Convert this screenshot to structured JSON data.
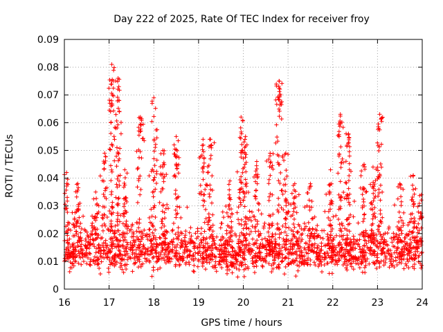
{
  "chart_data": {
    "type": "scatter",
    "title": "Day 222 of 2025, Rate Of TEC Index for receiver froy",
    "xlabel": "GPS time / hours",
    "ylabel": "ROTI / TECUs",
    "xlim": [
      16,
      24
    ],
    "ylim": [
      0,
      0.09
    ],
    "x_ticks": [
      "16",
      "17",
      "18",
      "19",
      "20",
      "21",
      "22",
      "23",
      "24"
    ],
    "y_ticks": [
      "0",
      "0.01",
      "0.02",
      "0.03",
      "0.04",
      "0.05",
      "0.06",
      "0.07",
      "0.08",
      "0.09"
    ],
    "grid": true,
    "marker": "+",
    "series_color": "#ff0000",
    "noise_baseline": 0.013,
    "bursts": [
      {
        "x": 16.05,
        "peak": 0.042
      },
      {
        "x": 16.3,
        "peak": 0.038
      },
      {
        "x": 16.7,
        "peak": 0.035
      },
      {
        "x": 16.9,
        "peak": 0.049
      },
      {
        "x": 17.06,
        "peak": 0.081
      },
      {
        "x": 17.2,
        "peak": 0.076
      },
      {
        "x": 17.35,
        "peak": 0.043
      },
      {
        "x": 17.7,
        "peak": 0.062
      },
      {
        "x": 18.0,
        "peak": 0.069
      },
      {
        "x": 18.2,
        "peak": 0.05
      },
      {
        "x": 18.5,
        "peak": 0.055
      },
      {
        "x": 19.1,
        "peak": 0.054
      },
      {
        "x": 19.25,
        "peak": 0.054
      },
      {
        "x": 19.7,
        "peak": 0.039
      },
      {
        "x": 19.95,
        "peak": 0.062
      },
      {
        "x": 20.05,
        "peak": 0.055
      },
      {
        "x": 20.3,
        "peak": 0.046
      },
      {
        "x": 20.6,
        "peak": 0.049
      },
      {
        "x": 20.8,
        "peak": 0.075
      },
      {
        "x": 20.95,
        "peak": 0.049
      },
      {
        "x": 21.15,
        "peak": 0.038
      },
      {
        "x": 21.5,
        "peak": 0.038
      },
      {
        "x": 21.95,
        "peak": 0.043
      },
      {
        "x": 22.17,
        "peak": 0.063
      },
      {
        "x": 22.35,
        "peak": 0.056
      },
      {
        "x": 22.7,
        "peak": 0.045
      },
      {
        "x": 22.9,
        "peak": 0.044
      },
      {
        "x": 23.05,
        "peak": 0.063
      },
      {
        "x": 23.5,
        "peak": 0.038
      },
      {
        "x": 23.8,
        "peak": 0.041
      },
      {
        "x": 23.98,
        "peak": 0.034
      }
    ]
  }
}
